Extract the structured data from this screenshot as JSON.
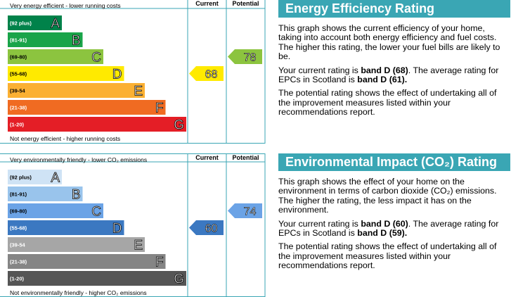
{
  "chart_data": [
    {
      "type": "bar",
      "name": "energy-efficiency",
      "top_label": "Very energy efficient - lower running costs",
      "bottom_label": "Not energy efficient - higher running costs",
      "columns": [
        "Current",
        "Potential"
      ],
      "bands": [
        {
          "range": "(92 plus)",
          "letter": "A",
          "color": "#00824a"
        },
        {
          "range": "(81-91)",
          "letter": "B",
          "color": "#19a449"
        },
        {
          "range": "(69-80)",
          "letter": "C",
          "color": "#8cc43f"
        },
        {
          "range": "(55-68)",
          "letter": "D",
          "color": "#ffea00"
        },
        {
          "range": "(39-54",
          "letter": "E",
          "color": "#fbb033"
        },
        {
          "range": "(21-38)",
          "letter": "F",
          "color": "#f06b22"
        },
        {
          "range": "(1-20)",
          "letter": "G",
          "color": "#e41e26"
        }
      ],
      "current": {
        "value": 68,
        "band": "D",
        "color": "#ffea00"
      },
      "potential": {
        "value": 78,
        "band": "C",
        "color": "#8cc43f"
      }
    },
    {
      "type": "bar",
      "name": "environmental-impact",
      "top_label": "Very environmentally friendly - lower CO₂ emissions",
      "bottom_label": "Not environmentally friendly - higher CO₂ emissions",
      "columns": [
        "Current",
        "Potential"
      ],
      "bands": [
        {
          "range": "(92 plus)",
          "letter": "A",
          "color": "#cfe3f5"
        },
        {
          "range": "(81-91)",
          "letter": "B",
          "color": "#99c4ec"
        },
        {
          "range": "(69-80)",
          "letter": "C",
          "color": "#6ba3e6"
        },
        {
          "range": "(55-68)",
          "letter": "D",
          "color": "#3b78c1"
        },
        {
          "range": "(39-54",
          "letter": "E",
          "color": "#a6a6a6"
        },
        {
          "range": "(21-38)",
          "letter": "F",
          "color": "#858585"
        },
        {
          "range": "(1-20)",
          "letter": "G",
          "color": "#555555"
        }
      ],
      "current": {
        "value": 60,
        "band": "D",
        "color": "#3b78c1"
      },
      "potential": {
        "value": 74,
        "band": "C",
        "color": "#6ba3e6"
      }
    }
  ],
  "panels": {
    "energy": {
      "title": "Energy Efficiency Rating",
      "p1": "This graph shows the current efficiency of your home, taking into account both energy efficiency and fuel costs. The higher this rating, the lower your fuel bills are likely to be.",
      "p2_pre": "Your current rating is ",
      "p2_bold1": "band D (68)",
      "p2_mid": ". The average rating for EPCs in Scotland is ",
      "p2_bold2": "band D (61).",
      "p3": "The potential rating shows the effect of undertaking all of the improvement measures listed within your recommendations report."
    },
    "environment": {
      "title": "Environmental Impact (CO₂) Rating",
      "p1": "This graph shows the effect of your home on the environment in terms of carbon dioxide (CO₂) emissions. The higher the rating, the less impact it has on the environment.",
      "p2_pre": "Your current rating is ",
      "p2_bold1": "band D (60)",
      "p2_mid": ". The average rating for EPCs in Scotland is ",
      "p2_bold2": "band D (59).",
      "p3": "The potential rating shows the effect of undertaking all of the improvement measures listed within your recommendations report."
    }
  }
}
